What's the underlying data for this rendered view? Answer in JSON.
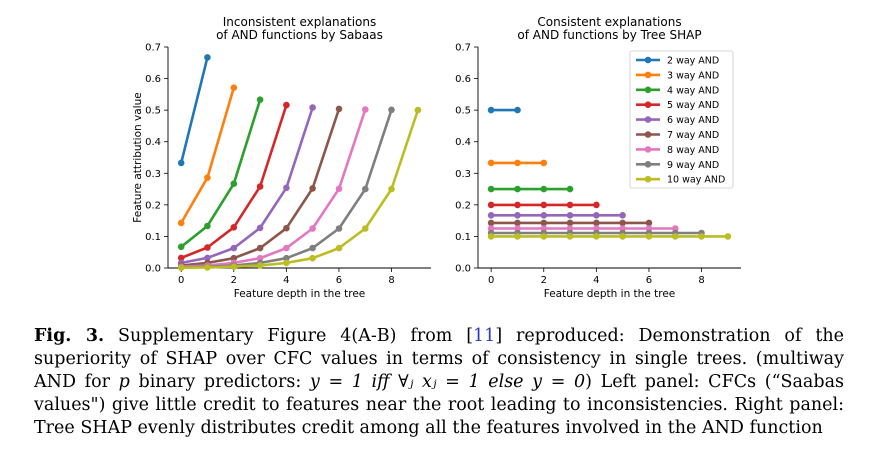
{
  "chart_data": [
    {
      "type": "line",
      "title": "Inconsistent explanations\nof AND functions by Sabaas",
      "xlabel": "Feature depth in the tree",
      "ylabel": "Feature attribution value",
      "xlim": [
        -0.5,
        9.5
      ],
      "ylim": [
        0,
        0.7
      ],
      "xticks": [
        0,
        2,
        4,
        6,
        8
      ],
      "yticks": [
        0.0,
        0.1,
        0.2,
        0.3,
        0.4,
        0.5,
        0.6,
        0.7
      ],
      "grid": false,
      "series": [
        {
          "name": "2 way AND",
          "color": "#1f77b4",
          "x": [
            0,
            1
          ],
          "values": [
            0.333,
            0.667
          ]
        },
        {
          "name": "3 way AND",
          "color": "#ff7f0e",
          "x": [
            0,
            1,
            2
          ],
          "values": [
            0.143,
            0.286,
            0.571
          ]
        },
        {
          "name": "4 way AND",
          "color": "#2ca02c",
          "x": [
            0,
            1,
            2,
            3
          ],
          "values": [
            0.067,
            0.133,
            0.267,
            0.533
          ]
        },
        {
          "name": "5 way AND",
          "color": "#d62728",
          "x": [
            0,
            1,
            2,
            3,
            4
          ],
          "values": [
            0.032,
            0.065,
            0.129,
            0.258,
            0.516
          ]
        },
        {
          "name": "6 way AND",
          "color": "#9467bd",
          "x": [
            0,
            1,
            2,
            3,
            4,
            5
          ],
          "values": [
            0.016,
            0.032,
            0.063,
            0.127,
            0.254,
            0.508
          ]
        },
        {
          "name": "7 way AND",
          "color": "#8c564b",
          "x": [
            0,
            1,
            2,
            3,
            4,
            5,
            6
          ],
          "values": [
            0.008,
            0.016,
            0.031,
            0.063,
            0.126,
            0.252,
            0.504
          ]
        },
        {
          "name": "8 way AND",
          "color": "#e377c2",
          "x": [
            0,
            1,
            2,
            3,
            4,
            5,
            6,
            7
          ],
          "values": [
            0.004,
            0.008,
            0.016,
            0.031,
            0.063,
            0.125,
            0.251,
            0.502
          ]
        },
        {
          "name": "9 way AND",
          "color": "#7f7f7f",
          "x": [
            0,
            1,
            2,
            3,
            4,
            5,
            6,
            7,
            8
          ],
          "values": [
            0.002,
            0.004,
            0.008,
            0.016,
            0.031,
            0.063,
            0.125,
            0.25,
            0.501
          ]
        },
        {
          "name": "10 way AND",
          "color": "#bcbd22",
          "x": [
            0,
            1,
            2,
            3,
            4,
            5,
            6,
            7,
            8,
            9
          ],
          "values": [
            0.001,
            0.002,
            0.004,
            0.008,
            0.016,
            0.031,
            0.063,
            0.125,
            0.25,
            0.5
          ]
        }
      ]
    },
    {
      "type": "line",
      "title": "Consistent explanations\nof AND functions by Tree SHAP",
      "xlabel": "Feature depth in the tree",
      "ylabel": "",
      "xlim": [
        -0.5,
        9.5
      ],
      "ylim": [
        0,
        0.7
      ],
      "xticks": [
        0,
        2,
        4,
        6,
        8
      ],
      "yticks": [
        0.0,
        0.1,
        0.2,
        0.3,
        0.4,
        0.5,
        0.6,
        0.7
      ],
      "grid": false,
      "legend": "top-right",
      "series": [
        {
          "name": "2 way AND",
          "color": "#1f77b4",
          "x": [
            0,
            1
          ],
          "values": [
            0.5,
            0.5
          ]
        },
        {
          "name": "3 way AND",
          "color": "#ff7f0e",
          "x": [
            0,
            1,
            2
          ],
          "values": [
            0.333,
            0.333,
            0.333
          ]
        },
        {
          "name": "4 way AND",
          "color": "#2ca02c",
          "x": [
            0,
            1,
            2,
            3
          ],
          "values": [
            0.25,
            0.25,
            0.25,
            0.25
          ]
        },
        {
          "name": "5 way AND",
          "color": "#d62728",
          "x": [
            0,
            1,
            2,
            3,
            4
          ],
          "values": [
            0.2,
            0.2,
            0.2,
            0.2,
            0.2
          ]
        },
        {
          "name": "6 way AND",
          "color": "#9467bd",
          "x": [
            0,
            1,
            2,
            3,
            4,
            5
          ],
          "values": [
            0.167,
            0.167,
            0.167,
            0.167,
            0.167,
            0.167
          ]
        },
        {
          "name": "7 way AND",
          "color": "#8c564b",
          "x": [
            0,
            1,
            2,
            3,
            4,
            5,
            6
          ],
          "values": [
            0.143,
            0.143,
            0.143,
            0.143,
            0.143,
            0.143,
            0.143
          ]
        },
        {
          "name": "8 way AND",
          "color": "#e377c2",
          "x": [
            0,
            1,
            2,
            3,
            4,
            5,
            6,
            7
          ],
          "values": [
            0.125,
            0.125,
            0.125,
            0.125,
            0.125,
            0.125,
            0.125,
            0.125
          ]
        },
        {
          "name": "9 way AND",
          "color": "#7f7f7f",
          "x": [
            0,
            1,
            2,
            3,
            4,
            5,
            6,
            7,
            8
          ],
          "values": [
            0.111,
            0.111,
            0.111,
            0.111,
            0.111,
            0.111,
            0.111,
            0.111,
            0.111
          ]
        },
        {
          "name": "10 way AND",
          "color": "#bcbd22",
          "x": [
            0,
            1,
            2,
            3,
            4,
            5,
            6,
            7,
            8,
            9
          ],
          "values": [
            0.1,
            0.1,
            0.1,
            0.1,
            0.1,
            0.1,
            0.1,
            0.1,
            0.1,
            0.1
          ]
        }
      ]
    }
  ],
  "caption": {
    "label": "Fig. 3.",
    "text_a": " Supplementary Figure 4(A-B) from [",
    "ref": "11",
    "text_b": "] reproduced: Demonstration of the superiority of SHAP over CFC values in terms of consistency in single trees. (multiway AND for ",
    "var_p": "p",
    "text_c": " binary predictors: ",
    "formula": "y = 1 iff ∀ⱼ xⱼ = 1 else y = 0",
    "text_d": ") Left panel: CFCs (“Saabas values\") give little credit to features near the root leading to inconsistencies. Right panel: Tree SHAP evenly distributes credit among all the features involved in the AND function"
  }
}
